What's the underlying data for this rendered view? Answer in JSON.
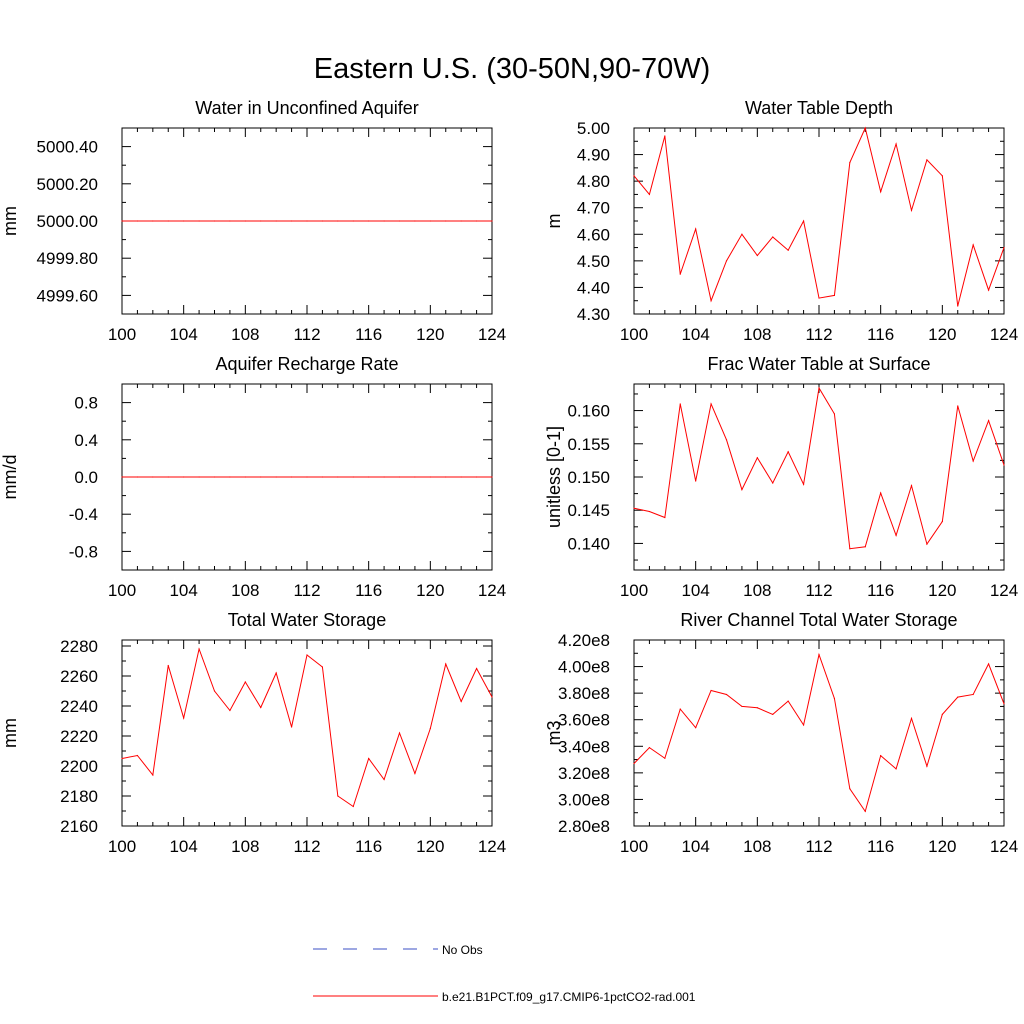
{
  "figure_title": "Eastern U.S. (30-50N,90-70W)",
  "legend": {
    "entries": [
      {
        "label": "No Obs",
        "color": "#3b4fc4",
        "style": "dashed"
      },
      {
        "label": "b.e21.B1PCT.f09_g17.CMIP6-1pctCO2-rad.001",
        "color": "#ff0000",
        "style": "solid"
      }
    ]
  },
  "chart_data": [
    {
      "type": "line",
      "title": "Water in Unconfined Aquifer",
      "xlabel": "",
      "ylabel": "mm",
      "xlim": [
        100,
        124
      ],
      "ylim": [
        4999.5,
        5000.5
      ],
      "xticks": [
        100,
        104,
        108,
        112,
        116,
        120,
        124
      ],
      "yticks": [
        4999.6,
        4999.8,
        5000.0,
        5000.2,
        5000.4
      ],
      "ytick_labels": [
        "4999.60",
        "4999.80",
        "5000.00",
        "5000.20",
        "5000.40"
      ],
      "x": [
        100,
        101,
        102,
        103,
        104,
        105,
        106,
        107,
        108,
        109,
        110,
        111,
        112,
        113,
        114,
        115,
        116,
        117,
        118,
        119,
        120,
        121,
        122,
        123,
        124
      ],
      "series": [
        {
          "color": "#ff0000",
          "values": [
            5000,
            5000,
            5000,
            5000,
            5000,
            5000,
            5000,
            5000,
            5000,
            5000,
            5000,
            5000,
            5000,
            5000,
            5000,
            5000,
            5000,
            5000,
            5000,
            5000,
            5000,
            5000,
            5000,
            5000,
            5000
          ]
        }
      ]
    },
    {
      "type": "line",
      "title": "Water Table Depth",
      "xlabel": "",
      "ylabel": "m",
      "xlim": [
        100,
        124
      ],
      "ylim": [
        4.3,
        5.0
      ],
      "xticks": [
        100,
        104,
        108,
        112,
        116,
        120,
        124
      ],
      "yticks": [
        4.3,
        4.4,
        4.5,
        4.6,
        4.7,
        4.8,
        4.9,
        5.0
      ],
      "ytick_labels": [
        "4.30",
        "4.40",
        "4.50",
        "4.60",
        "4.70",
        "4.80",
        "4.90",
        "5.00"
      ],
      "x": [
        100,
        101,
        102,
        103,
        104,
        105,
        106,
        107,
        108,
        109,
        110,
        111,
        112,
        113,
        114,
        115,
        116,
        117,
        118,
        119,
        120,
        121,
        122,
        123,
        124
      ],
      "series": [
        {
          "color": "#ff0000",
          "values": [
            4.82,
            4.75,
            4.97,
            4.45,
            4.62,
            4.35,
            4.5,
            4.6,
            4.52,
            4.59,
            4.54,
            4.65,
            4.36,
            4.37,
            4.87,
            5.0,
            4.76,
            4.94,
            4.69,
            4.88,
            4.82,
            4.33,
            4.56,
            4.39,
            4.55
          ]
        }
      ]
    },
    {
      "type": "line",
      "title": "Aquifer Recharge Rate",
      "xlabel": "",
      "ylabel": "mm/d",
      "xlim": [
        100,
        124
      ],
      "ylim": [
        -1.0,
        1.0
      ],
      "xticks": [
        100,
        104,
        108,
        112,
        116,
        120,
        124
      ],
      "yticks": [
        -0.8,
        -0.4,
        0.0,
        0.4,
        0.8
      ],
      "ytick_labels": [
        "-0.8",
        "-0.4",
        "0.0",
        "0.4",
        "0.8"
      ],
      "x": [
        100,
        101,
        102,
        103,
        104,
        105,
        106,
        107,
        108,
        109,
        110,
        111,
        112,
        113,
        114,
        115,
        116,
        117,
        118,
        119,
        120,
        121,
        122,
        123,
        124
      ],
      "series": [
        {
          "color": "#ff0000",
          "values": [
            0,
            0,
            0,
            0,
            0,
            0,
            0,
            0,
            0,
            0,
            0,
            0,
            0,
            0,
            0,
            0,
            0,
            0,
            0,
            0,
            0,
            0,
            0,
            0,
            0
          ]
        }
      ]
    },
    {
      "type": "line",
      "title": "Frac Water Table at Surface",
      "xlabel": "",
      "ylabel": "unitless [0-1]",
      "xlim": [
        100,
        124
      ],
      "ylim": [
        0.136,
        0.164
      ],
      "xticks": [
        100,
        104,
        108,
        112,
        116,
        120,
        124
      ],
      "yticks": [
        0.14,
        0.145,
        0.15,
        0.155,
        0.16
      ],
      "ytick_labels": [
        "0.140",
        "0.145",
        "0.150",
        "0.155",
        "0.160"
      ],
      "x": [
        100,
        101,
        102,
        103,
        104,
        105,
        106,
        107,
        108,
        109,
        110,
        111,
        112,
        113,
        114,
        115,
        116,
        117,
        118,
        119,
        120,
        121,
        122,
        123,
        124
      ],
      "series": [
        {
          "color": "#ff0000",
          "values": [
            0.1453,
            0.1448,
            0.1439,
            0.161,
            0.1494,
            0.161,
            0.1556,
            0.1481,
            0.1529,
            0.1491,
            0.1538,
            0.1489,
            0.1634,
            0.1595,
            0.1392,
            0.1395,
            0.1476,
            0.1412,
            0.1487,
            0.1399,
            0.1433,
            0.1607,
            0.1524,
            0.1585,
            0.1518
          ]
        }
      ]
    },
    {
      "type": "line",
      "title": "Total Water Storage",
      "xlabel": "",
      "ylabel": "mm",
      "xlim": [
        100,
        124
      ],
      "ylim": [
        2160,
        2284
      ],
      "xticks": [
        100,
        104,
        108,
        112,
        116,
        120,
        124
      ],
      "yticks": [
        2160,
        2180,
        2200,
        2220,
        2240,
        2260,
        2280
      ],
      "ytick_labels": [
        "2160",
        "2180",
        "2200",
        "2220",
        "2240",
        "2260",
        "2280"
      ],
      "x": [
        100,
        101,
        102,
        103,
        104,
        105,
        106,
        107,
        108,
        109,
        110,
        111,
        112,
        113,
        114,
        115,
        116,
        117,
        118,
        119,
        120,
        121,
        122,
        123,
        124
      ],
      "series": [
        {
          "color": "#ff0000",
          "values": [
            2205,
            2207,
            2194,
            2267,
            2232,
            2278,
            2250,
            2237,
            2256,
            2239,
            2262,
            2226,
            2274,
            2266,
            2180,
            2173,
            2205,
            2191,
            2222,
            2195,
            2225,
            2268,
            2243,
            2265,
            2246
          ]
        }
      ]
    },
    {
      "type": "line",
      "title": "River Channel Total Water Storage",
      "xlabel": "",
      "ylabel": "m3",
      "xlim": [
        100,
        124
      ],
      "ylim": [
        280000000.0,
        420000000.0
      ],
      "xticks": [
        100,
        104,
        108,
        112,
        116,
        120,
        124
      ],
      "yticks": [
        280000000.0,
        300000000.0,
        320000000.0,
        340000000.0,
        360000000.0,
        380000000.0,
        400000000.0,
        420000000.0
      ],
      "ytick_labels": [
        "2.80e8",
        "3.00e8",
        "3.20e8",
        "3.40e8",
        "3.60e8",
        "3.80e8",
        "4.00e8",
        "4.20e8"
      ],
      "x": [
        100,
        101,
        102,
        103,
        104,
        105,
        106,
        107,
        108,
        109,
        110,
        111,
        112,
        113,
        114,
        115,
        116,
        117,
        118,
        119,
        120,
        121,
        122,
        123,
        124
      ],
      "series": [
        {
          "color": "#ff0000",
          "values": [
            327000000.0,
            339000000.0,
            331000000.0,
            368000000.0,
            354000000.0,
            382000000.0,
            379000000.0,
            370000000.0,
            369000000.0,
            364000000.0,
            374000000.0,
            356000000.0,
            409000000.0,
            376000000.0,
            308000000.0,
            291000000.0,
            333000000.0,
            323000000.0,
            361000000.0,
            325000000.0,
            364000000.0,
            377000000.0,
            379000000.0,
            402000000.0,
            372000000.0
          ]
        }
      ]
    }
  ]
}
